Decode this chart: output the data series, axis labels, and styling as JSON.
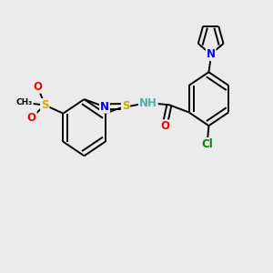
{
  "background_color": "#ebebeb",
  "atom_colors": {
    "C": "#000000",
    "H": "#5aabab",
    "N": "#0000ff",
    "O": "#ff0000",
    "S": "#ccaa00",
    "Cl": "#008800"
  },
  "bond_color": "#000000",
  "bond_lw": 1.4,
  "double_sep": 0.1,
  "font_size": 8.5,
  "font_size_small": 7.0
}
